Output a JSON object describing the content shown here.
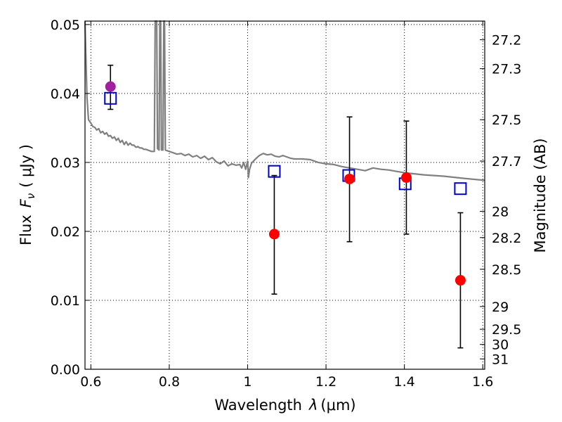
{
  "chart_data": {
    "type": "scatter",
    "xlabel": "Wavelength",
    "xlabel_symbol": "λ",
    "xlabel_unit": "(μm)",
    "ylabel": "Flux",
    "ylabel_symbol": "F",
    "ylabel_subscript": "ν",
    "ylabel_unit": "( μJy )",
    "y2label": "Magnitude (AB)",
    "xlim": [
      0.585,
      1.605
    ],
    "ylim": [
      0.0,
      0.0505
    ],
    "grid": true,
    "x_ticks": [
      0.6,
      0.8,
      1.0,
      1.2,
      1.4,
      1.6
    ],
    "x_tick_labels": [
      "0.6",
      "0.8",
      "1",
      "1.2",
      "1.4",
      "1.6"
    ],
    "y_ticks": [
      0.0,
      0.01,
      0.02,
      0.03,
      0.04,
      0.05
    ],
    "y_tick_labels": [
      "0.00",
      "0.01",
      "0.02",
      "0.03",
      "0.04",
      "0.05"
    ],
    "y2_ticks": [
      {
        "label": "27.2",
        "flux": 0.0478
      },
      {
        "label": "27.3",
        "flux": 0.0436
      },
      {
        "label": "27.5",
        "flux": 0.0362
      },
      {
        "label": "27.7",
        "flux": 0.0302
      },
      {
        "label": "28",
        "flux": 0.0229
      },
      {
        "label": "28.2",
        "flux": 0.0191
      },
      {
        "label": "28.5",
        "flux": 0.0145
      },
      {
        "label": "29",
        "flux": 0.0091
      },
      {
        "label": "29.5",
        "flux": 0.0058
      },
      {
        "label": "30",
        "flux": 0.0036
      },
      {
        "label": "31",
        "flux": 0.0015
      }
    ],
    "series": [
      {
        "kind": "line",
        "color": "#808080",
        "points": [
          [
            0.585,
            0.0508
          ],
          [
            0.59,
            0.0395
          ],
          [
            0.594,
            0.0362
          ],
          [
            0.6,
            0.0357
          ],
          [
            0.605,
            0.0352
          ],
          [
            0.61,
            0.0351
          ],
          [
            0.615,
            0.0347
          ],
          [
            0.62,
            0.0349
          ],
          [
            0.625,
            0.0343
          ],
          [
            0.63,
            0.0345
          ],
          [
            0.635,
            0.0341
          ],
          [
            0.64,
            0.0343
          ],
          [
            0.645,
            0.0338
          ],
          [
            0.65,
            0.0339
          ],
          [
            0.655,
            0.0335
          ],
          [
            0.66,
            0.0337
          ],
          [
            0.665,
            0.0332
          ],
          [
            0.67,
            0.0335
          ],
          [
            0.675,
            0.0329
          ],
          [
            0.68,
            0.0332
          ],
          [
            0.685,
            0.0326
          ],
          [
            0.69,
            0.033
          ],
          [
            0.695,
            0.0325
          ],
          [
            0.7,
            0.0328
          ],
          [
            0.705,
            0.0325
          ],
          [
            0.71,
            0.0325
          ],
          [
            0.715,
            0.0322
          ],
          [
            0.72,
            0.0323
          ],
          [
            0.725,
            0.0321
          ],
          [
            0.73,
            0.0321
          ],
          [
            0.735,
            0.0319
          ],
          [
            0.74,
            0.0319
          ],
          [
            0.745,
            0.0318
          ],
          [
            0.75,
            0.0317
          ],
          [
            0.755,
            0.0316
          ],
          [
            0.76,
            0.0316
          ],
          [
            0.762,
            0.0316
          ],
          [
            0.764,
            0.0505
          ],
          [
            0.768,
            0.0505
          ],
          [
            0.77,
            0.032
          ],
          [
            0.774,
            0.0318
          ],
          [
            0.776,
            0.0505
          ],
          [
            0.778,
            0.0505
          ],
          [
            0.78,
            0.0318
          ],
          [
            0.784,
            0.0318
          ],
          [
            0.786,
            0.0505
          ],
          [
            0.788,
            0.0505
          ],
          [
            0.79,
            0.0318
          ],
          [
            0.795,
            0.0317
          ],
          [
            0.8,
            0.0316
          ],
          [
            0.81,
            0.0314
          ],
          [
            0.82,
            0.0312
          ],
          [
            0.83,
            0.0313
          ],
          [
            0.84,
            0.031
          ],
          [
            0.85,
            0.0312
          ],
          [
            0.86,
            0.0308
          ],
          [
            0.87,
            0.031
          ],
          [
            0.88,
            0.0306
          ],
          [
            0.89,
            0.0309
          ],
          [
            0.9,
            0.0304
          ],
          [
            0.91,
            0.0307
          ],
          [
            0.92,
            0.0301
          ],
          [
            0.93,
            0.0298
          ],
          [
            0.94,
            0.0302
          ],
          [
            0.95,
            0.0295
          ],
          [
            0.96,
            0.0298
          ],
          [
            0.97,
            0.0296
          ],
          [
            0.98,
            0.0297
          ],
          [
            0.985,
            0.0292
          ],
          [
            0.99,
            0.03
          ],
          [
            0.995,
            0.029
          ],
          [
            1.0,
            0.0302
          ],
          [
            1.002,
            0.0278
          ],
          [
            1.005,
            0.029
          ],
          [
            1.01,
            0.0299
          ],
          [
            1.015,
            0.0302
          ],
          [
            1.02,
            0.0305
          ],
          [
            1.03,
            0.031
          ],
          [
            1.04,
            0.0313
          ],
          [
            1.05,
            0.0311
          ],
          [
            1.06,
            0.0312
          ],
          [
            1.07,
            0.0309
          ],
          [
            1.08,
            0.0308
          ],
          [
            1.09,
            0.031
          ],
          [
            1.1,
            0.0308
          ],
          [
            1.11,
            0.0306
          ],
          [
            1.12,
            0.0305
          ],
          [
            1.14,
            0.0305
          ],
          [
            1.16,
            0.0304
          ],
          [
            1.18,
            0.03
          ],
          [
            1.2,
            0.0298
          ],
          [
            1.22,
            0.0297
          ],
          [
            1.24,
            0.0294
          ],
          [
            1.26,
            0.0292
          ],
          [
            1.28,
            0.029
          ],
          [
            1.3,
            0.0288
          ],
          [
            1.32,
            0.0292
          ],
          [
            1.34,
            0.029
          ],
          [
            1.36,
            0.0289
          ],
          [
            1.38,
            0.0287
          ],
          [
            1.4,
            0.0285
          ],
          [
            1.45,
            0.0282
          ],
          [
            1.5,
            0.028
          ],
          [
            1.55,
            0.0277
          ],
          [
            1.605,
            0.0274
          ]
        ]
      },
      {
        "kind": "errorbar",
        "color": "#000000",
        "points": [
          {
            "x": 0.65,
            "low": 0.0377,
            "high": 0.0441
          },
          {
            "x": 1.068,
            "low": 0.0109,
            "high": 0.0281
          },
          {
            "x": 1.26,
            "low": 0.0185,
            "high": 0.0366
          },
          {
            "x": 1.405,
            "low": 0.0196,
            "high": 0.036
          },
          {
            "x": 1.543,
            "low": 0.0031,
            "high": 0.0227
          }
        ]
      },
      {
        "kind": "square",
        "color": "#0000cc",
        "points": [
          [
            0.65,
            0.0393
          ],
          [
            1.068,
            0.0287
          ],
          [
            1.258,
            0.0281
          ],
          [
            1.402,
            0.0269
          ],
          [
            1.543,
            0.0262
          ]
        ]
      },
      {
        "kind": "point",
        "color": "#ff0000",
        "points": [
          [
            1.068,
            0.0196
          ],
          [
            1.26,
            0.0276
          ],
          [
            1.405,
            0.0278
          ],
          [
            1.543,
            0.0129
          ]
        ]
      },
      {
        "kind": "point",
        "color": "#a020a0",
        "points": [
          [
            0.65,
            0.041
          ]
        ]
      }
    ]
  }
}
